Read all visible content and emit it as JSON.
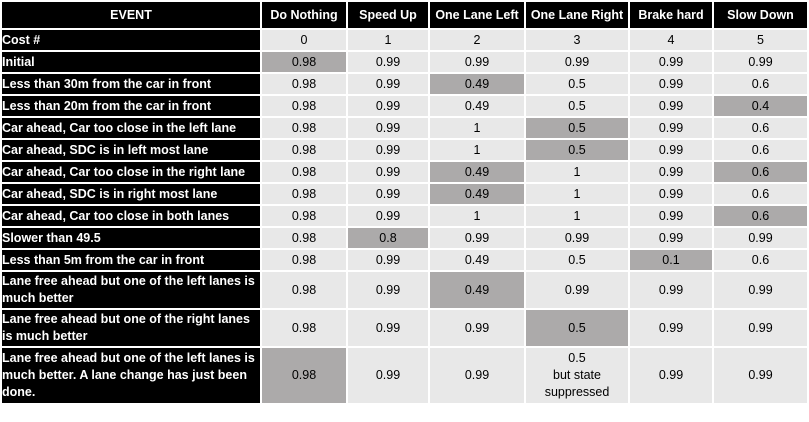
{
  "table": {
    "headers": [
      "EVENT",
      "Do Nothing",
      "Speed Up",
      "One Lane Left",
      "One Lane Right",
      "Brake hard",
      "Slow Down"
    ],
    "rows": [
      {
        "event": "Cost #",
        "values": [
          "0",
          "1",
          "2",
          "3",
          "4",
          "5"
        ],
        "highlight": []
      },
      {
        "event": "Initial",
        "values": [
          "0.98",
          "0.99",
          "0.99",
          "0.99",
          "0.99",
          "0.99"
        ],
        "highlight": [
          0
        ]
      },
      {
        "event": "Less than 30m from the car in front",
        "values": [
          "0.98",
          "0.99",
          "0.49",
          "0.5",
          "0.99",
          "0.6"
        ],
        "highlight": [
          2
        ]
      },
      {
        "event": "Less than 20m from the car in front",
        "values": [
          "0.98",
          "0.99",
          "0.49",
          "0.5",
          "0.99",
          "0.4"
        ],
        "highlight": [
          5
        ]
      },
      {
        "event": "Car ahead, Car too close in the left lane",
        "values": [
          "0.98",
          "0.99",
          "1",
          "0.5",
          "0.99",
          "0.6"
        ],
        "highlight": [
          3
        ]
      },
      {
        "event": "Car ahead, SDC is in left most lane",
        "values": [
          "0.98",
          "0.99",
          "1",
          "0.5",
          "0.99",
          "0.6"
        ],
        "highlight": [
          3
        ]
      },
      {
        "event": "Car ahead, Car too close in the right lane",
        "values": [
          "0.98",
          "0.99",
          "0.49",
          "1",
          "0.99",
          "0.6"
        ],
        "highlight": [
          2,
          5
        ]
      },
      {
        "event": "Car ahead, SDC is in right most lane",
        "values": [
          "0.98",
          "0.99",
          "0.49",
          "1",
          "0.99",
          "0.6"
        ],
        "highlight": [
          2
        ]
      },
      {
        "event": "Car ahead, Car too close in both lanes",
        "values": [
          "0.98",
          "0.99",
          "1",
          "1",
          "0.99",
          "0.6"
        ],
        "highlight": [
          5
        ]
      },
      {
        "event": "Slower than 49.5",
        "values": [
          "0.98",
          "0.8",
          "0.99",
          "0.99",
          "0.99",
          "0.99"
        ],
        "highlight": [
          1
        ]
      },
      {
        "event": "Less than 5m from the car in front",
        "values": [
          "0.98",
          "0.99",
          "0.49",
          "0.5",
          "0.1",
          "0.6"
        ],
        "highlight": [
          4
        ]
      },
      {
        "event": "Lane free ahead but one of the left lanes is much better",
        "values": [
          "0.98",
          "0.99",
          "0.49",
          "0.99",
          "0.99",
          "0.99"
        ],
        "highlight": [
          2
        ]
      },
      {
        "event": "Lane free ahead but one of the right lanes is much better",
        "values": [
          "0.98",
          "0.99",
          "0.99",
          "0.5",
          "0.99",
          "0.99"
        ],
        "highlight": [
          3
        ]
      },
      {
        "event": "Lane free ahead but one of the left lanes is much better. A lane change has just been done.",
        "values": [
          "0.98",
          "0.99",
          "0.99",
          "0.5\nbut state\nsuppressed",
          "0.99",
          "0.99"
        ],
        "highlight": [
          0
        ]
      }
    ]
  }
}
